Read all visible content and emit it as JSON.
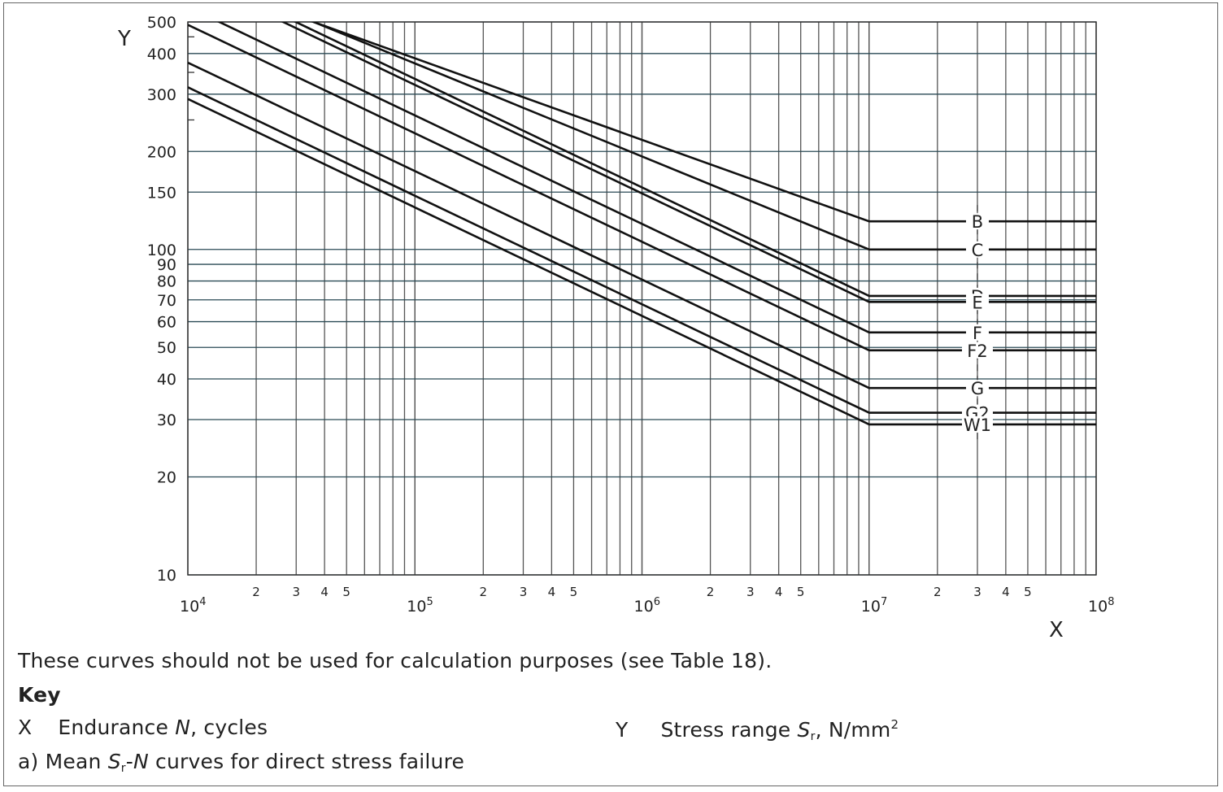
{
  "chart_data": {
    "type": "line",
    "title": "a) Mean Sr-N curves for direct stress failure",
    "xlabel": "X",
    "ylabel": "Y",
    "xscale": "log",
    "yscale": "log",
    "xlim": [
      10000,
      100000000
    ],
    "ylim": [
      10,
      500
    ],
    "grid": true,
    "x_major_ticks": [
      "10^4",
      "10^5",
      "10^6",
      "10^7",
      "10^8"
    ],
    "x_minor_tick_labels": [
      "2",
      "3",
      "4",
      "5"
    ],
    "y_ticks": [
      10,
      20,
      30,
      40,
      50,
      60,
      70,
      80,
      90,
      100,
      150,
      200,
      300,
      400,
      500
    ],
    "knee_cycles": 10000000,
    "series": [
      {
        "name": "B",
        "slope_m": 4.0,
        "stress_at_1e7": 122,
        "points": [
          [
            10000,
            688
          ],
          [
            10000000,
            122
          ],
          [
            100000000,
            122
          ]
        ]
      },
      {
        "name": "C",
        "slope_m": 3.5,
        "stress_at_1e7": 100,
        "points": [
          [
            10000,
            720
          ],
          [
            10000000,
            100
          ],
          [
            100000000,
            100
          ]
        ]
      },
      {
        "name": "D",
        "slope_m": 3.0,
        "stress_at_1e7": 72,
        "points": [
          [
            10000,
            720
          ],
          [
            10000000,
            72
          ],
          [
            100000000,
            72
          ]
        ]
      },
      {
        "name": "E",
        "slope_m": 3.0,
        "stress_at_1e7": 69,
        "points": [
          [
            10000,
            690
          ],
          [
            10000000,
            69
          ],
          [
            100000000,
            69
          ]
        ]
      },
      {
        "name": "F",
        "slope_m": 3.0,
        "stress_at_1e7": 55.6,
        "points": [
          [
            10000,
            556
          ],
          [
            10000000,
            55.6
          ],
          [
            100000000,
            55.6
          ]
        ]
      },
      {
        "name": "F2",
        "slope_m": 3.0,
        "stress_at_1e7": 49,
        "points": [
          [
            10000,
            490
          ],
          [
            10000000,
            49
          ],
          [
            100000000,
            49
          ]
        ]
      },
      {
        "name": "G",
        "slope_m": 3.0,
        "stress_at_1e7": 37.5,
        "points": [
          [
            10000,
            375
          ],
          [
            10000000,
            37.5
          ],
          [
            100000000,
            37.5
          ]
        ]
      },
      {
        "name": "G2",
        "slope_m": 3.0,
        "stress_at_1e7": 31.5,
        "points": [
          [
            10000,
            315
          ],
          [
            10000000,
            31.5
          ],
          [
            100000000,
            31.5
          ]
        ]
      },
      {
        "name": "W1",
        "slope_m": 3.0,
        "stress_at_1e7": 29,
        "points": [
          [
            10000,
            290
          ],
          [
            10000000,
            29
          ],
          [
            100000000,
            29
          ]
        ]
      }
    ],
    "curve_label_x": 30000000
  },
  "notes": {
    "caution": "These curves should not be used for calculation purposes (see Table 18).",
    "key_heading": "Key",
    "x_key_letter": "X",
    "x_key_text_pre": "Endurance ",
    "x_key_var": "N",
    "x_key_text_post": ", cycles",
    "y_key_letter": "Y",
    "y_key_text_pre": "Stress range ",
    "y_key_var": "S",
    "y_key_sub": "r",
    "y_key_text_post": ", N/mm",
    "y_key_sup": "2",
    "caption_pre": "a) Mean ",
    "caption_var": "S",
    "caption_sub": "r",
    "caption_mid": "-",
    "caption_var2": "N",
    "caption_post": " curves for direct stress failure"
  }
}
